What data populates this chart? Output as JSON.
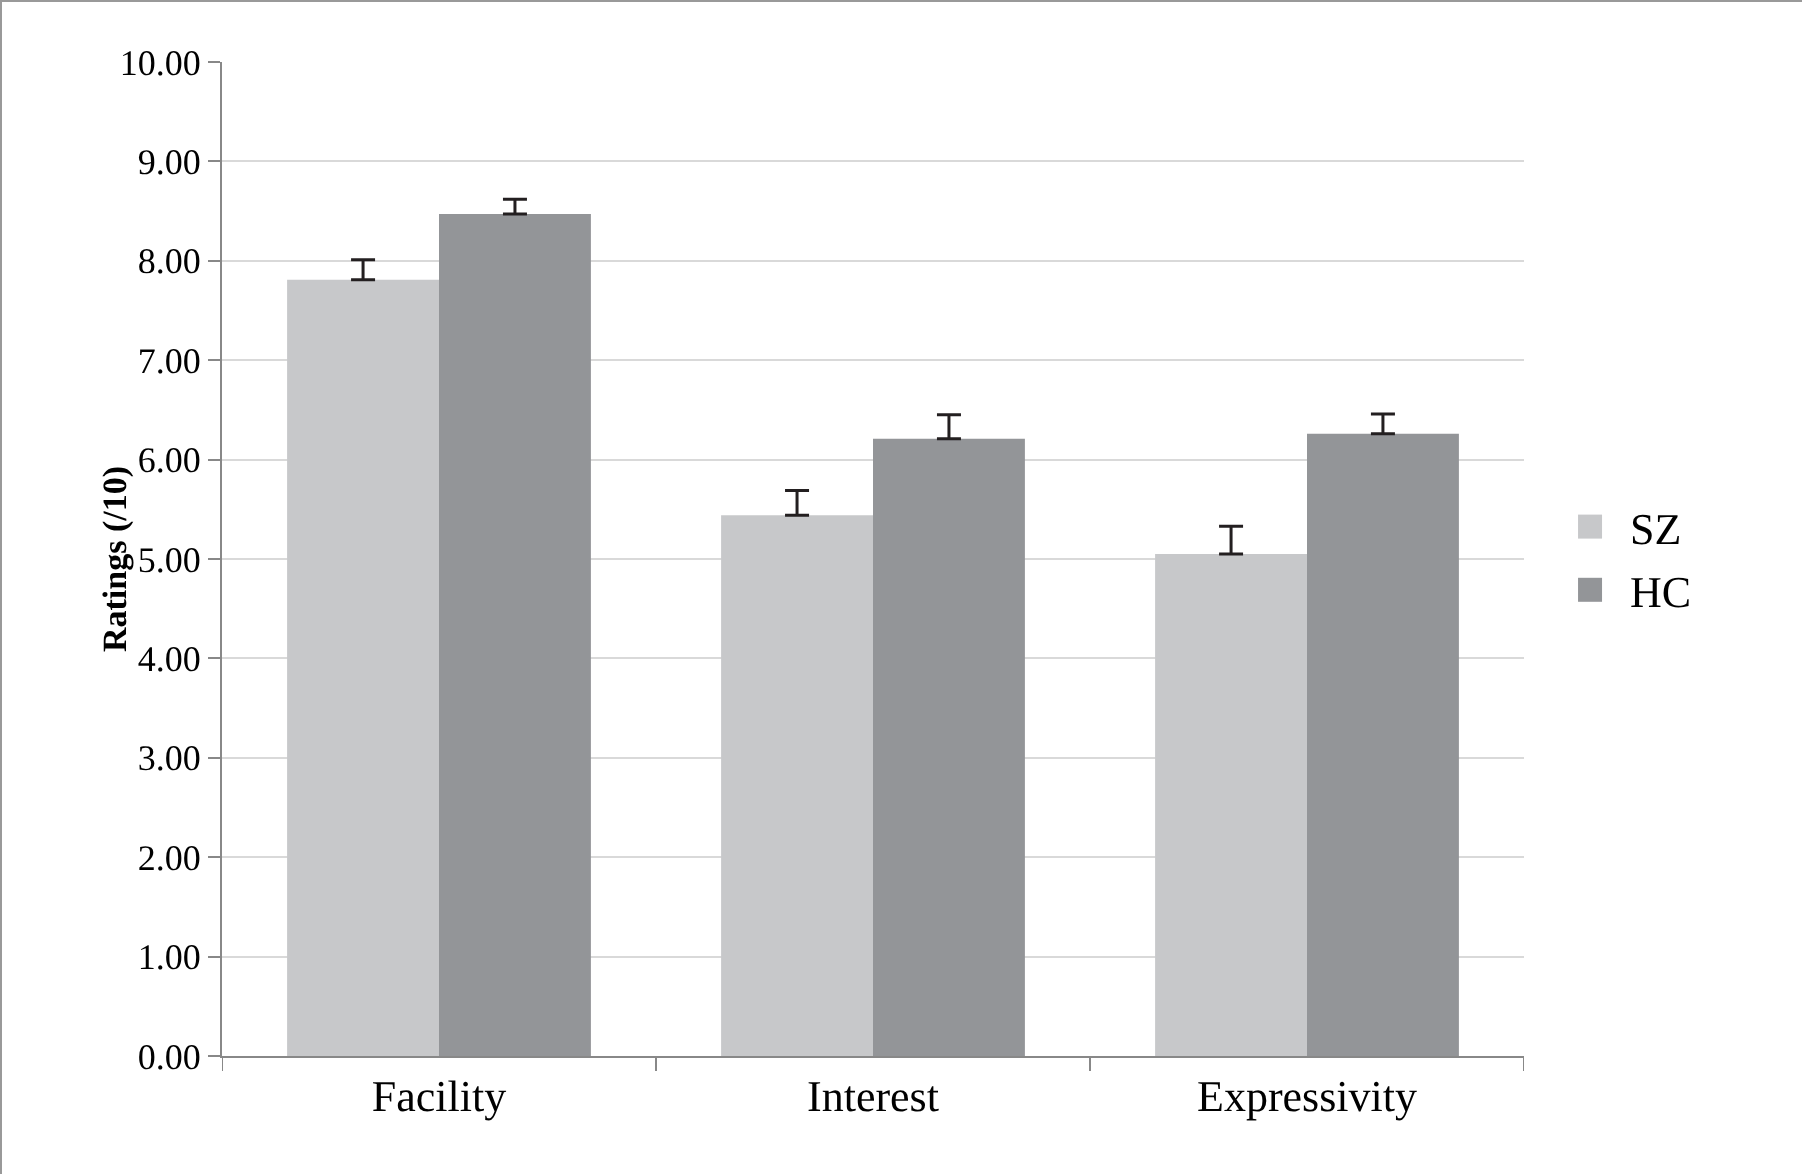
{
  "chart_data": {
    "type": "bar",
    "ylabel": "Ratings (/10)",
    "categories": [
      "Facility",
      "Interest",
      "Expressivity"
    ],
    "series": [
      {
        "name": "SZ",
        "color": "#c7c8ca",
        "values": [
          7.81,
          5.44,
          5.05
        ],
        "errors": [
          0.2,
          0.25,
          0.28
        ]
      },
      {
        "name": "HC",
        "color": "#939598",
        "values": [
          8.47,
          6.21,
          6.26
        ],
        "errors": [
          0.15,
          0.24,
          0.2
        ]
      }
    ],
    "ylim": [
      0,
      10
    ],
    "yticks": [
      {
        "value": 0,
        "label": "0.00"
      },
      {
        "value": 1,
        "label": "1.00"
      },
      {
        "value": 2,
        "label": "2.00"
      },
      {
        "value": 3,
        "label": "3.00"
      },
      {
        "value": 4,
        "label": "4.00"
      },
      {
        "value": 5,
        "label": "5.00"
      },
      {
        "value": 6,
        "label": "6.00"
      },
      {
        "value": 7,
        "label": "7.00"
      },
      {
        "value": 8,
        "label": "8.00"
      },
      {
        "value": 9,
        "label": "9.00"
      },
      {
        "value": 10,
        "label": "10.00"
      }
    ],
    "grid": "y",
    "legend": "right"
  }
}
